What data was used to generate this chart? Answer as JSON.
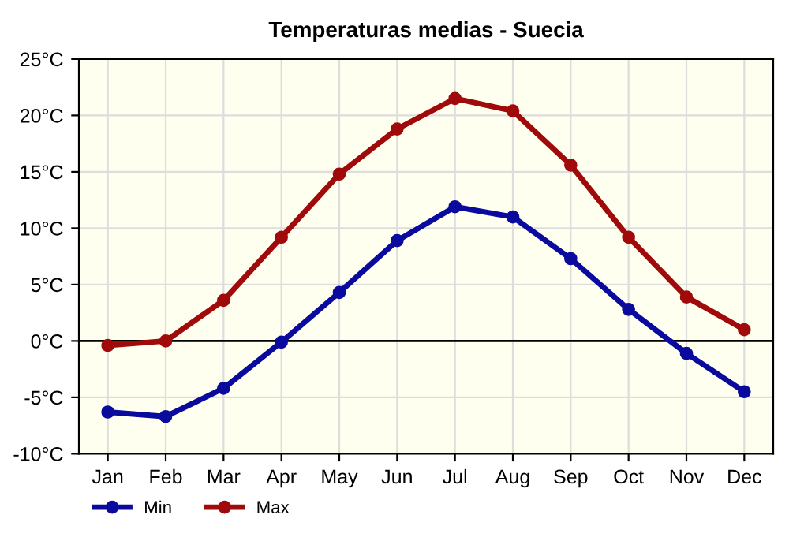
{
  "chart_data": {
    "type": "line",
    "title": "Temperaturas medias - Suecia",
    "categories": [
      "Jan",
      "Feb",
      "Mar",
      "Apr",
      "May",
      "Jun",
      "Jul",
      "Aug",
      "Sep",
      "Oct",
      "Nov",
      "Dec"
    ],
    "series": [
      {
        "name": "Min",
        "color": "#0a0a9e",
        "values": [
          -6.3,
          -6.7,
          -4.2,
          -0.1,
          4.3,
          8.9,
          11.9,
          11.0,
          7.3,
          2.8,
          -1.1,
          -4.5
        ]
      },
      {
        "name": "Max",
        "color": "#a00a0a",
        "values": [
          -0.4,
          0.0,
          3.6,
          9.2,
          14.8,
          18.8,
          21.5,
          20.4,
          15.6,
          9.2,
          3.9,
          1.0
        ]
      }
    ],
    "ylim": [
      -10,
      25
    ],
    "yticks": [
      {
        "value": -10,
        "label": "-10°C"
      },
      {
        "value": -5,
        "label": "-5°C"
      },
      {
        "value": 0,
        "label": "0°C"
      },
      {
        "value": 5,
        "label": "5°C"
      },
      {
        "value": 10,
        "label": "10°C"
      },
      {
        "value": 15,
        "label": "15°C"
      },
      {
        "value": 20,
        "label": "20°C"
      },
      {
        "value": 25,
        "label": "25°C"
      }
    ],
    "ref_lines": [
      {
        "axis": "y",
        "value": 0,
        "color": "#000000"
      }
    ],
    "grid": true,
    "legend": "bottom left",
    "marker": "circle",
    "line_style": "solid"
  }
}
